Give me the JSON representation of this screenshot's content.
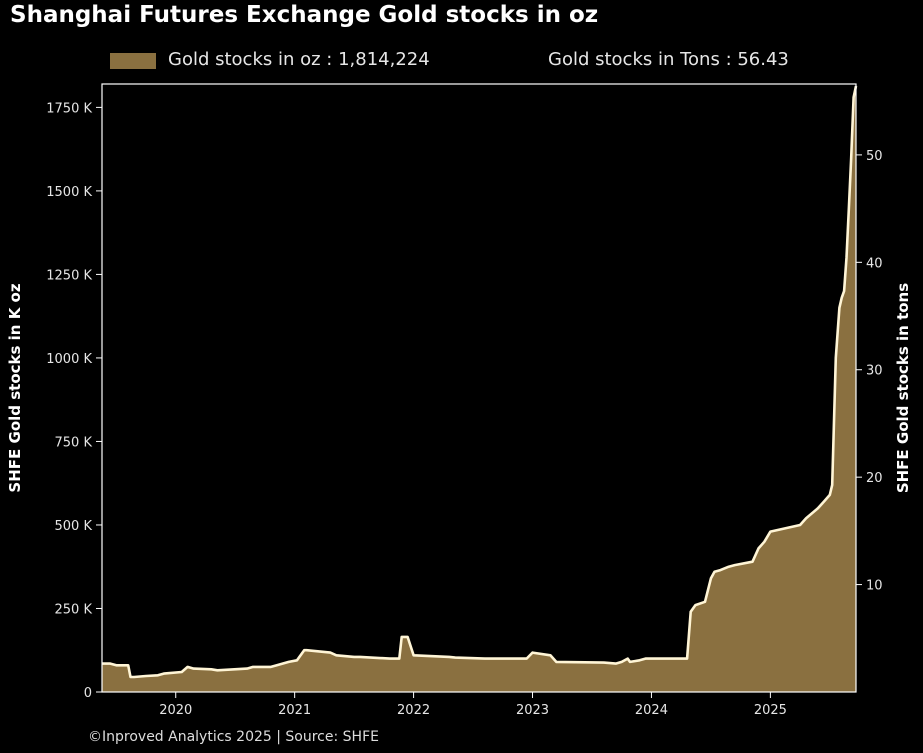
{
  "title": "Shanghai Futures Exchange Gold stocks in oz",
  "legend": {
    "oz_label": "Gold stocks in oz : 1,814,224",
    "tons_label": "Gold stocks in Tons : 56.43"
  },
  "footer": "©Inproved Analytics 2025 | Source: SHFE",
  "colors": {
    "fill": "#8a7040",
    "line": "#fff5d6",
    "background": "#000000",
    "axis": "#ffffff"
  },
  "chart_data": {
    "type": "area",
    "title": "Shanghai Futures Exchange Gold stocks in oz",
    "ylabel": "SHFE Gold stocks in K oz",
    "y2label": "SHFE Gold stocks in tons",
    "ylim": [
      0,
      1820
    ],
    "y2lim": [
      0,
      56.6
    ],
    "xlim": [
      2019.38,
      2025.72
    ],
    "x_ticks": [
      2020,
      2021,
      2022,
      2023,
      2024,
      2025
    ],
    "x_tick_labels": [
      "2020",
      "2021",
      "2022",
      "2023",
      "2024",
      "2025"
    ],
    "y_ticks": [
      0,
      250,
      500,
      750,
      1000,
      1250,
      1500,
      1750
    ],
    "y_tick_labels": [
      "0",
      "250 K",
      "500 K",
      "750 K",
      "1000 K",
      "1250 K",
      "1500 K",
      "1750 K"
    ],
    "y2_ticks": [
      10,
      20,
      30,
      40,
      50
    ],
    "y2_tick_labels": [
      "10",
      "20",
      "30",
      "40",
      "50"
    ],
    "grid": false,
    "legend_position": "top",
    "series": [
      {
        "name": "Gold stocks in oz",
        "x": [
          2019.38,
          2019.45,
          2019.5,
          2019.52,
          2019.6,
          2019.62,
          2019.65,
          2019.75,
          2019.85,
          2019.9,
          2020.05,
          2020.1,
          2020.15,
          2020.3,
          2020.35,
          2020.6,
          2020.65,
          2020.8,
          2020.85,
          2020.95,
          2021.02,
          2021.08,
          2021.1,
          2021.3,
          2021.35,
          2021.5,
          2021.55,
          2021.8,
          2021.88,
          2021.9,
          2021.95,
          2022.0,
          2022.3,
          2022.35,
          2022.6,
          2022.65,
          2022.9,
          2022.95,
          2023.0,
          2023.15,
          2023.2,
          2023.6,
          2023.7,
          2023.75,
          2023.8,
          2023.82,
          2023.9,
          2023.95,
          2024.0,
          2024.1,
          2024.3,
          2024.33,
          2024.37,
          2024.45,
          2024.5,
          2024.53,
          2024.58,
          2024.65,
          2024.7,
          2024.85,
          2024.9,
          2024.95,
          2025.0,
          2025.25,
          2025.3,
          2025.4,
          2025.45,
          2025.5,
          2025.52,
          2025.55,
          2025.58,
          2025.6,
          2025.62,
          2025.64,
          2025.66,
          2025.68,
          2025.7,
          2025.72
        ],
        "values": [
          85,
          85,
          80,
          80,
          80,
          45,
          45,
          48,
          50,
          55,
          60,
          75,
          70,
          68,
          65,
          70,
          75,
          75,
          80,
          90,
          95,
          125,
          125,
          118,
          110,
          105,
          105,
          100,
          100,
          165,
          165,
          110,
          105,
          103,
          100,
          100,
          100,
          100,
          118,
          110,
          90,
          88,
          85,
          90,
          100,
          90,
          95,
          100,
          100,
          100,
          100,
          240,
          260,
          270,
          340,
          360,
          365,
          375,
          380,
          390,
          430,
          450,
          480,
          500,
          520,
          550,
          570,
          590,
          620,
          1000,
          1150,
          1180,
          1200,
          1300,
          1450,
          1600,
          1780,
          1814
        ]
      }
    ]
  }
}
